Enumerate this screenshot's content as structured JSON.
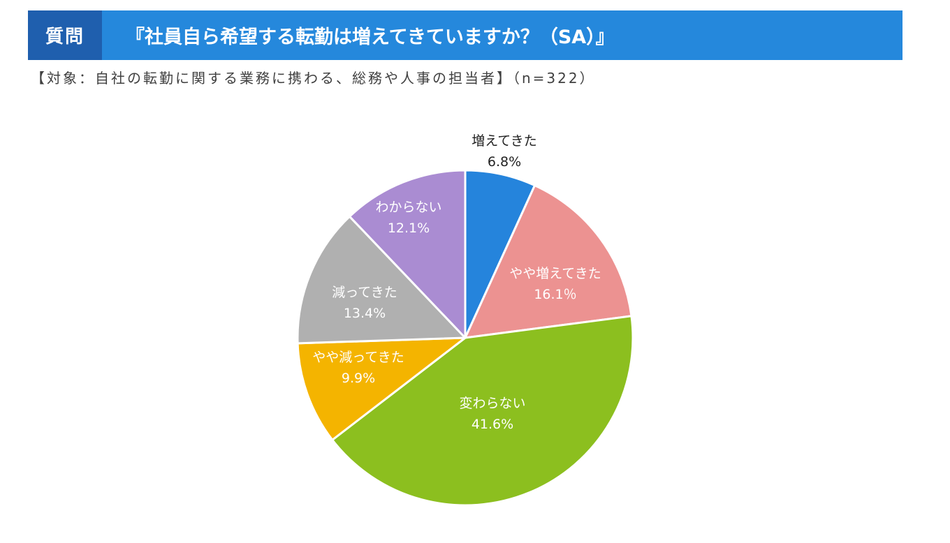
{
  "header": {
    "tag": "質問",
    "question": "『社員自ら希望する転勤は増えてきていますか？（SA）』"
  },
  "target": "【対象：自社の転勤に関する業務に携わる、総務や人事の担当者】（n=322）",
  "colors": {
    "header_bar": "#2588dc",
    "header_tag": "#1f5fae"
  },
  "chart_data": {
    "type": "pie",
    "title": "",
    "start_angle_deg": 0,
    "direction": "clockwise",
    "slices": [
      {
        "label": "増えてきた",
        "value": 6.8,
        "display": "6.8%",
        "color": "#2584dc",
        "label_color": "#222222"
      },
      {
        "label": "やや増えてきた",
        "value": 16.1,
        "display": "16.1％",
        "color": "#ec9291",
        "label_color": "#ffffff"
      },
      {
        "label": "変わらない",
        "value": 41.6,
        "display": "41.6%",
        "color": "#8cbf1f",
        "label_color": "#ffffff"
      },
      {
        "label": "やや減ってきた",
        "value": 9.9,
        "display": "9.9%",
        "color": "#f4b400",
        "label_color": "#ffffff"
      },
      {
        "label": "減ってきた",
        "value": 13.4,
        "display": "13.4%",
        "color": "#b0b0b0",
        "label_color": "#ffffff"
      },
      {
        "label": "わからない",
        "value": 12.1,
        "display": "12.1%",
        "color": "#aa8cd2",
        "label_color": "#ffffff"
      }
    ]
  }
}
